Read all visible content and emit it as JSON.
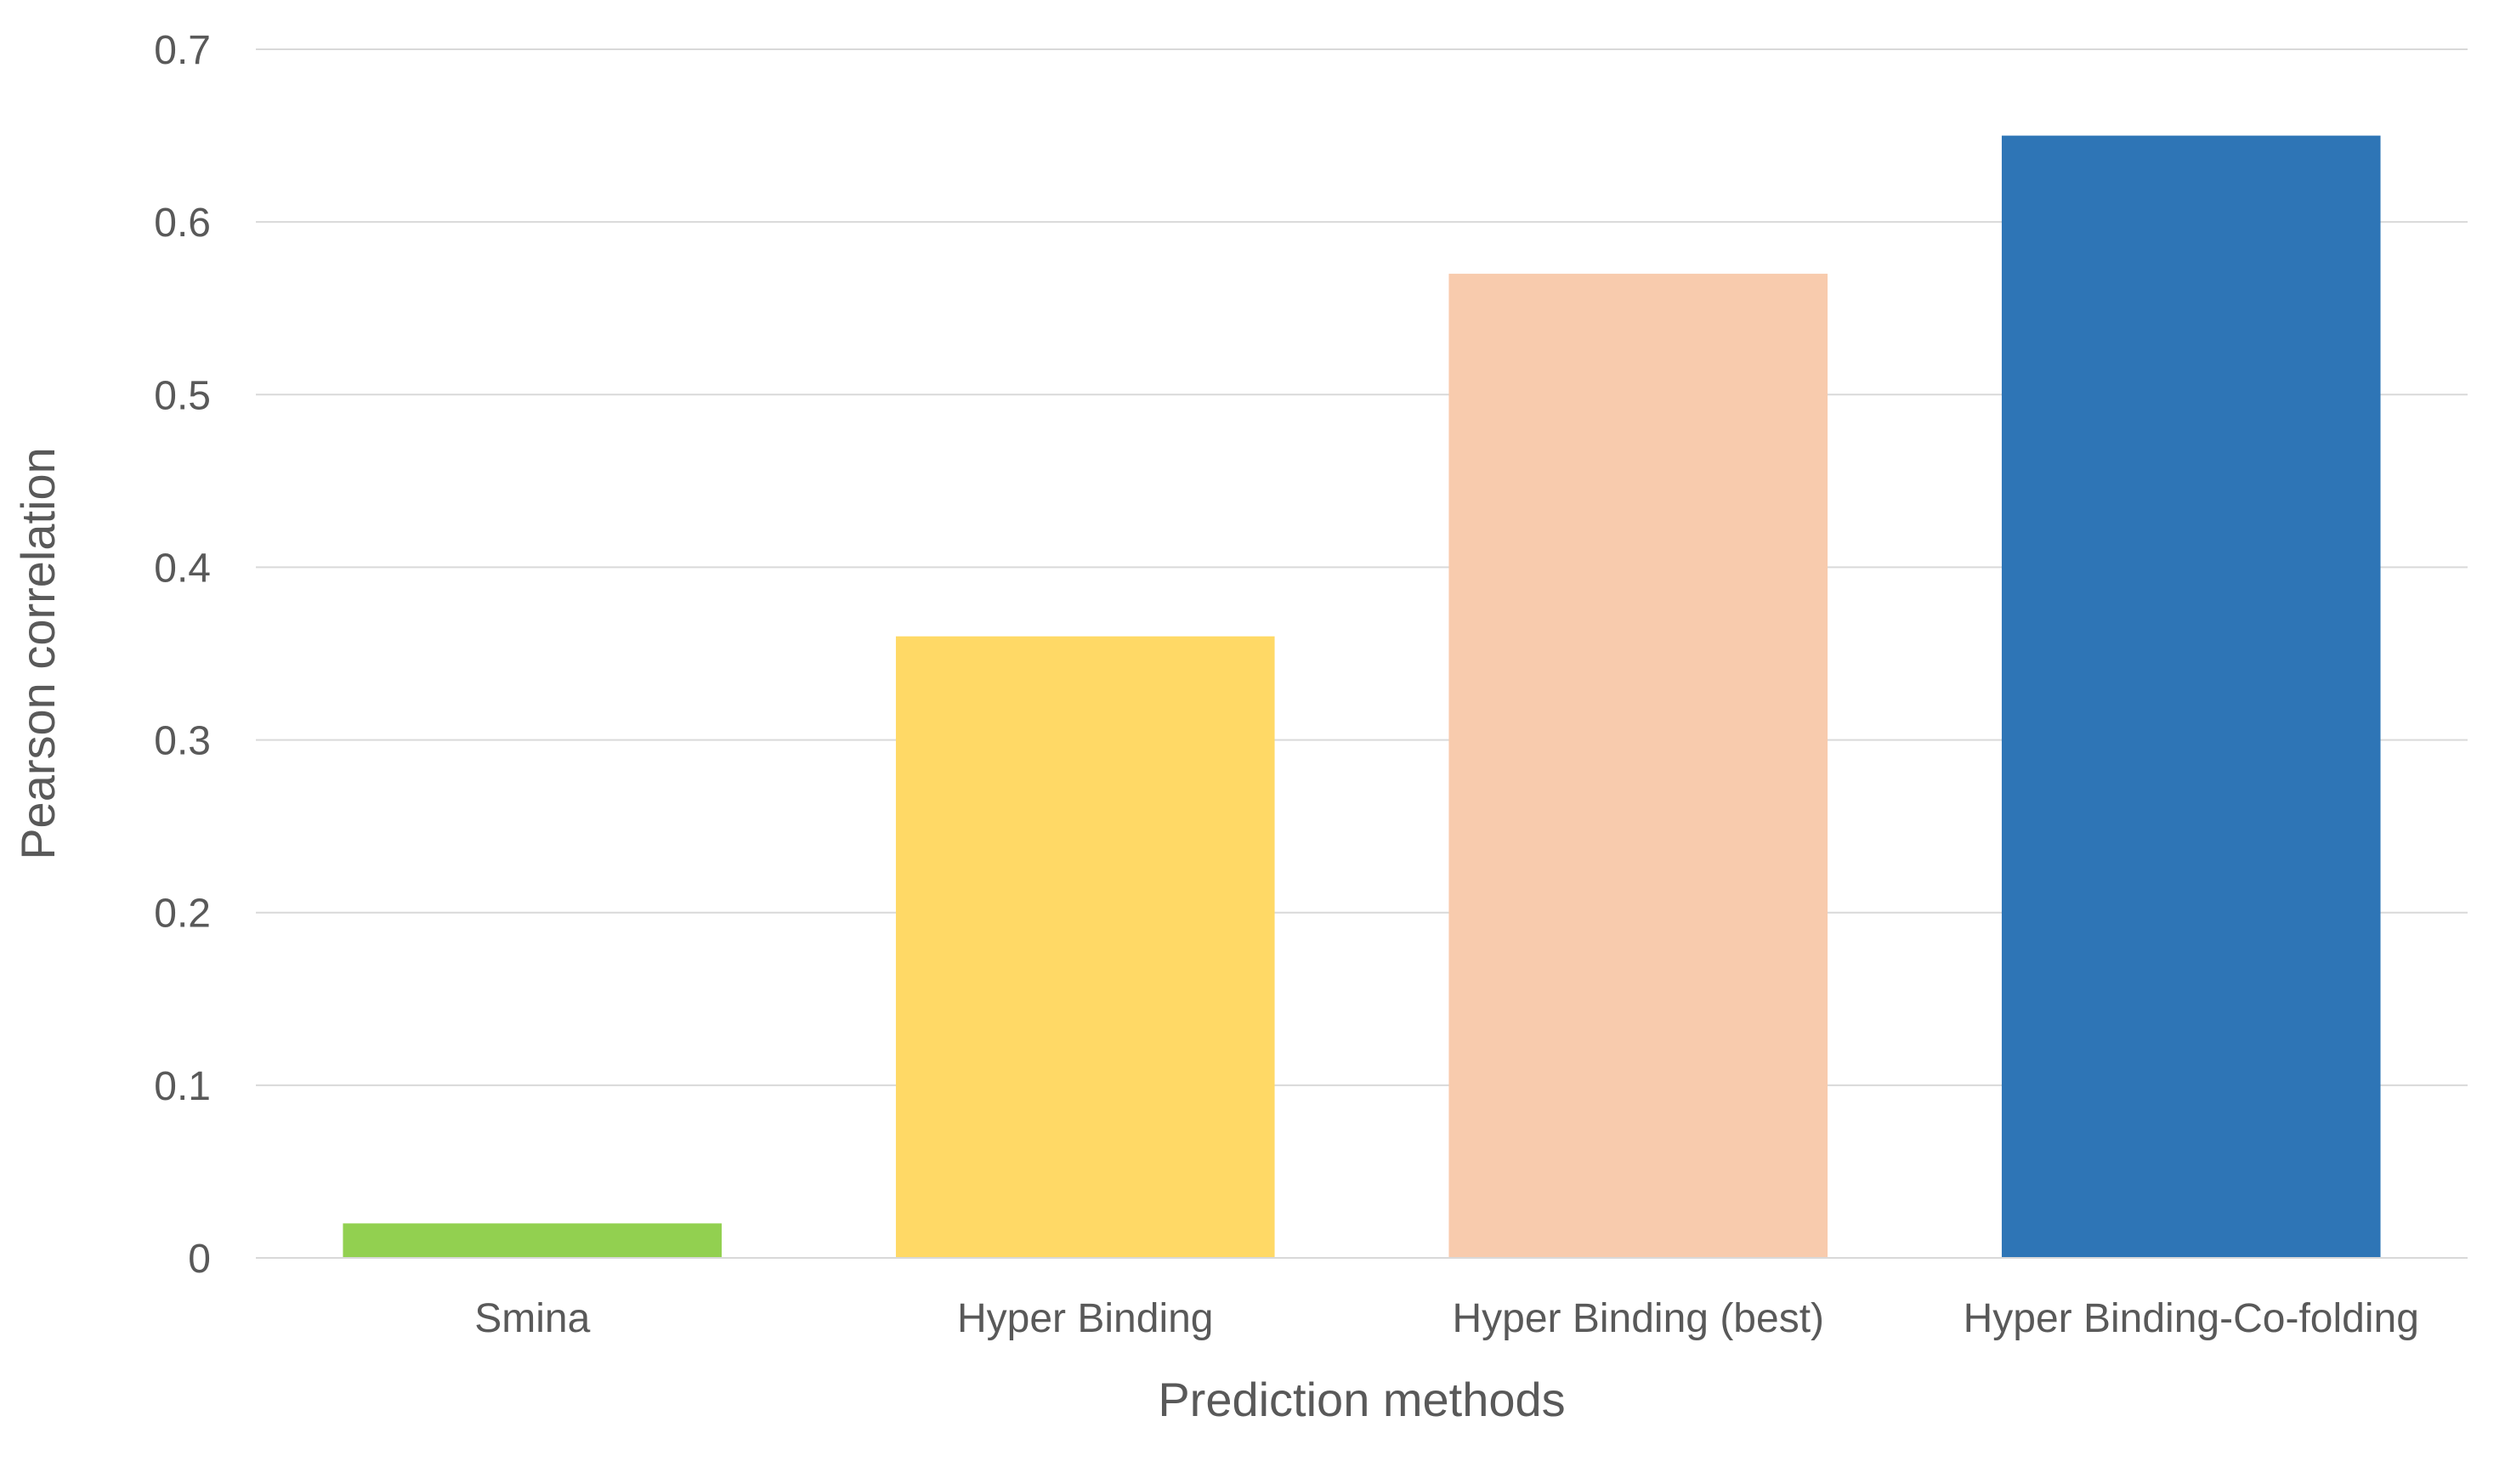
{
  "chart_data": {
    "type": "bar",
    "categories": [
      "Smina",
      "Hyper Binding",
      "Hyper Binding (best)",
      "Hyper Binding-Co-folding"
    ],
    "values": [
      0.02,
      0.36,
      0.57,
      0.65
    ],
    "colors": [
      "#92d050",
      "#ffd966",
      "#f8cbad",
      "#2e75b6"
    ],
    "xlabel": "Prediction methods",
    "ylabel": "Pearson correlation",
    "ylim": [
      0,
      0.7
    ],
    "yticks": [
      "0",
      "0.1",
      "0.2",
      "0.3",
      "0.4",
      "0.5",
      "0.6",
      "0.7"
    ],
    "grid": true,
    "legend": "none"
  }
}
